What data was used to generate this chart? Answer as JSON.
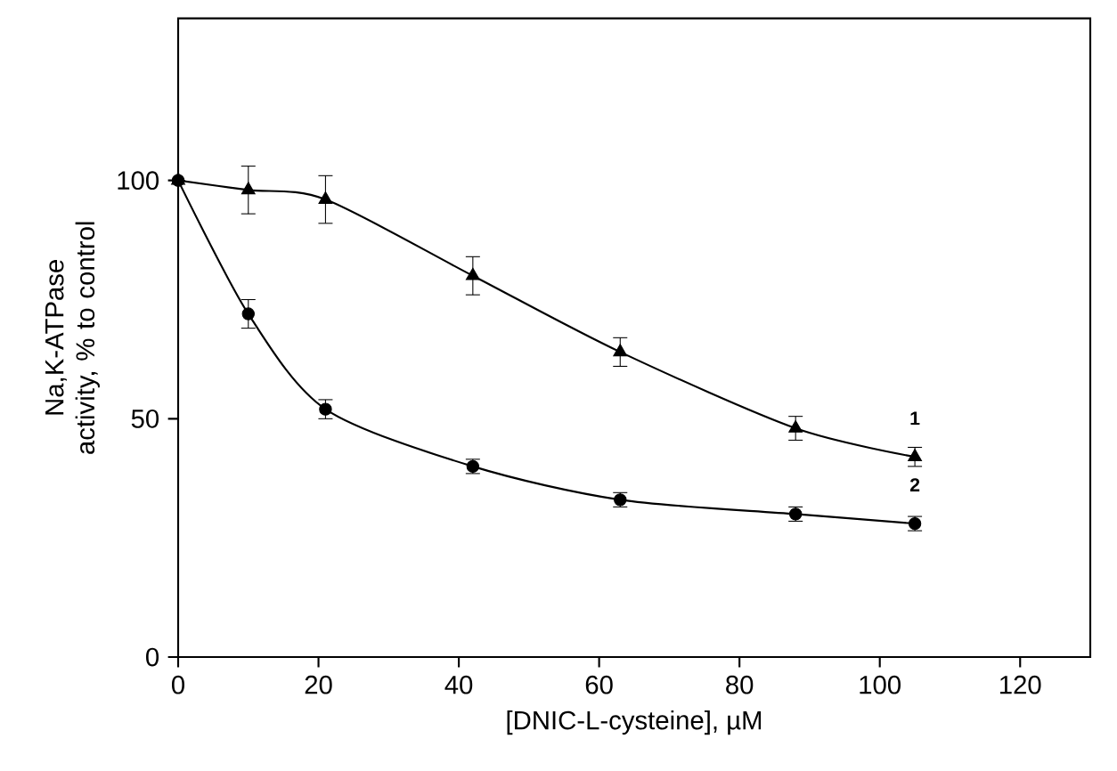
{
  "chart_data": {
    "type": "line",
    "xlabel": "[DNIC-L-cysteine], µM",
    "ylabel": "Na,K-ATPase activity, % to control",
    "xlim": [
      0,
      130
    ],
    "ylim": [
      0,
      134
    ],
    "xticks": [
      0,
      20,
      40,
      60,
      80,
      100,
      120
    ],
    "yticks": [
      0,
      50,
      100
    ],
    "grid": false,
    "x": [
      0,
      10,
      21,
      42,
      63,
      88,
      105
    ],
    "series": [
      {
        "name": "1",
        "color": "#000000",
        "marker": "triangle",
        "values": [
          100,
          98,
          96,
          80,
          64,
          48,
          42
        ],
        "errors": [
          null,
          5,
          5,
          4,
          3,
          2.5,
          2
        ]
      },
      {
        "name": "2",
        "color": "#000000",
        "marker": "circle",
        "values": [
          100,
          72,
          52,
          40,
          33,
          30,
          28
        ],
        "errors": [
          null,
          3,
          2,
          1.5,
          1.5,
          1.5,
          1.5
        ]
      }
    ]
  }
}
